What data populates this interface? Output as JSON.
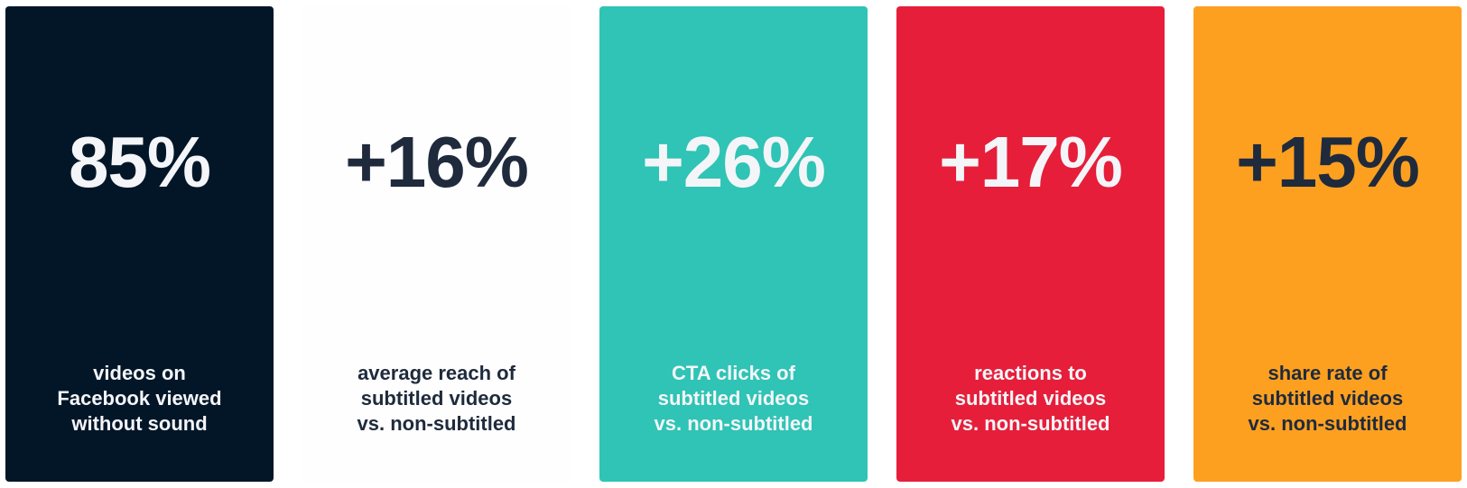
{
  "cards": [
    {
      "stat": "85%",
      "description": [
        "videos on",
        "Facebook viewed",
        "without sound"
      ]
    },
    {
      "stat": "+16%",
      "description": [
        "average reach of",
        "subtitled videos",
        "vs. non-subtitled"
      ]
    },
    {
      "stat": "+26%",
      "description": [
        "CTA clicks of",
        "subtitled videos",
        "vs. non-subtitled"
      ]
    },
    {
      "stat": "+17%",
      "description": [
        "reactions to",
        "subtitled videos",
        "vs. non-subtitled"
      ]
    },
    {
      "stat": "+15%",
      "description": [
        "share rate of",
        "subtitled videos",
        "vs. non-subtitled"
      ]
    }
  ]
}
